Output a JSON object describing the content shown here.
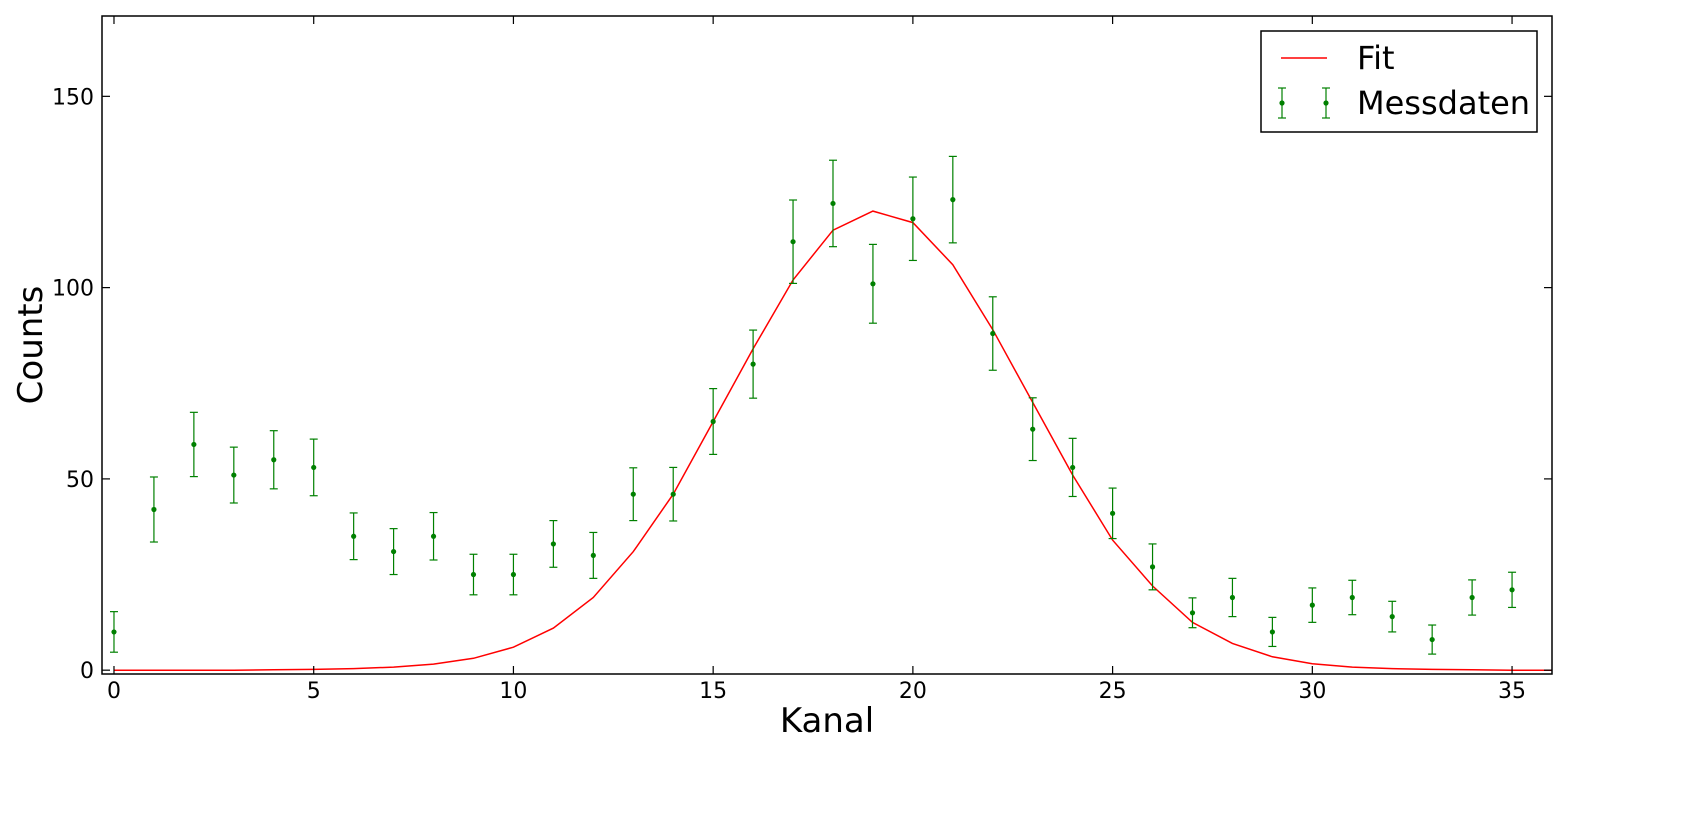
{
  "chart_data": {
    "type": "scatter",
    "title": "",
    "xlabel": "Kanal",
    "ylabel": "Counts",
    "xlim": [
      -0.3,
      36
    ],
    "ylim": [
      -1,
      171
    ],
    "xticks": [
      0,
      5,
      10,
      15,
      20,
      25,
      30,
      35
    ],
    "yticks": [
      0,
      50,
      100,
      150
    ],
    "grid": false,
    "legend": "top-right",
    "fit": {
      "name": "Fit",
      "color": "#ff0000",
      "x": [
        0,
        1,
        2,
        3,
        4,
        5,
        6,
        7,
        8,
        9,
        10,
        11,
        12,
        13,
        14,
        15,
        16,
        17,
        18,
        19,
        20,
        21,
        22,
        23,
        24,
        25,
        26,
        27,
        28,
        29,
        30,
        31,
        32,
        33,
        34,
        35,
        36
      ],
      "y": [
        0,
        0,
        0,
        0,
        0.1,
        0.2,
        0.4,
        0.8,
        1.6,
        3.1,
        6,
        11,
        19,
        31,
        46,
        65,
        84,
        102,
        115,
        120,
        117,
        106,
        89,
        70,
        51,
        34,
        22,
        12.5,
        7,
        3.5,
        1.7,
        0.8,
        0.4,
        0.2,
        0.1,
        0,
        0
      ]
    },
    "data": {
      "name": "Messdaten",
      "color": "#008000",
      "x": [
        0,
        1,
        2,
        3,
        4,
        5,
        6,
        7,
        8,
        9,
        10,
        11,
        12,
        13,
        14,
        15,
        16,
        17,
        18,
        19,
        20,
        21,
        22,
        23,
        24,
        25,
        26,
        27,
        28,
        29,
        30,
        31,
        32,
        33,
        34,
        35
      ],
      "y": [
        10,
        42,
        59,
        51,
        55,
        53,
        35,
        31,
        35,
        25,
        25,
        33,
        30,
        46,
        46,
        65,
        80,
        112,
        122,
        101,
        118,
        123,
        88,
        63,
        53,
        41,
        27,
        15,
        19,
        10,
        17,
        19,
        14,
        8,
        19,
        21
      ],
      "err": [
        5.3,
        8.5,
        8.4,
        7.3,
        7.6,
        7.4,
        6.1,
        6.0,
        6.2,
        5.3,
        5.3,
        6.1,
        6.0,
        6.9,
        7.0,
        8.6,
        8.9,
        10.9,
        11.3,
        10.3,
        10.9,
        11.3,
        9.6,
        8.2,
        7.6,
        6.6,
        6.0,
        3.9,
        5.0,
        3.8,
        4.5,
        4.5,
        4.0,
        3.8,
        4.6,
        4.6
      ]
    }
  }
}
